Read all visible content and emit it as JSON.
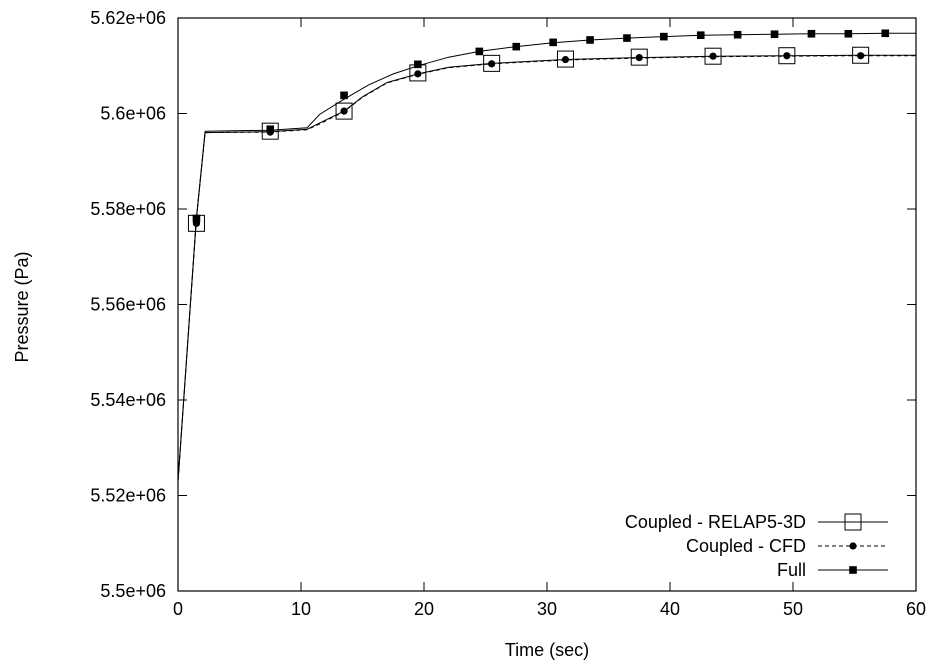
{
  "chart_data": {
    "type": "line",
    "title": "",
    "xlabel": "Time  (sec)",
    "ylabel": "Pressure (Pa)",
    "xlim": [
      0,
      60
    ],
    "ylim": [
      5500000,
      5620000
    ],
    "grid": false,
    "legend_position": "bottom-right",
    "x_ticks": [
      0,
      10,
      20,
      30,
      40,
      50,
      60
    ],
    "x_tick_labels": [
      "0",
      "10",
      "20",
      "30",
      "40",
      "50",
      "60"
    ],
    "y_ticks": [
      5500000,
      5520000,
      5540000,
      5560000,
      5580000,
      5600000,
      5620000
    ],
    "y_tick_labels": [
      "5.5e+06",
      "5.52e+06",
      "5.54e+06",
      "5.56e+06",
      "5.58e+06",
      "5.6e+06",
      "5.62e+06"
    ],
    "series": [
      {
        "name": "Coupled - RELAP5-3D",
        "marker": "open-square",
        "line": "solid",
        "line_x": [
          0,
          1.5,
          2.2,
          7.5,
          10.5,
          11.5,
          13.5,
          15,
          17,
          19.5,
          22,
          25.5,
          31.5,
          37.5,
          43.5,
          49.5,
          55.5,
          60
        ],
        "line_y": [
          5523000,
          5578000,
          5596000,
          5596200,
          5596700,
          5598000,
          5600500,
          5603500,
          5606500,
          5608300,
          5609700,
          5610500,
          5611300,
          5611700,
          5612000,
          5612100,
          5612200,
          5612200
        ],
        "marker_x": [
          1.5,
          7.5,
          13.5,
          19.5,
          25.5,
          31.5,
          37.5,
          43.5,
          49.5,
          55.5
        ],
        "marker_y": [
          5577000,
          5596300,
          5600500,
          5608500,
          5610500,
          5611400,
          5611800,
          5612000,
          5612100,
          5612200
        ]
      },
      {
        "name": "Coupled - CFD",
        "marker": "filled-circle",
        "line": "dashed",
        "line_x": [
          0,
          1.5,
          2.2,
          7.5,
          10.5,
          11.5,
          13.5,
          15,
          17,
          19.5,
          22,
          25.5,
          31.5,
          37.5,
          43.5,
          49.5,
          55.5,
          60
        ],
        "line_y": [
          5523000,
          5578000,
          5596000,
          5596100,
          5596600,
          5597800,
          5600400,
          5603400,
          5606400,
          5608200,
          5609600,
          5610400,
          5611200,
          5611600,
          5611900,
          5612000,
          5612100,
          5612100
        ],
        "marker_x": [
          1.5,
          7.5,
          13.5,
          19.5,
          25.5,
          31.5,
          37.5,
          43.5,
          49.5,
          55.5
        ],
        "marker_y": [
          5577000,
          5596100,
          5600500,
          5608300,
          5610400,
          5611300,
          5611700,
          5612000,
          5612100,
          5612100
        ]
      },
      {
        "name": "Full",
        "marker": "filled-square",
        "line": "solid",
        "line_x": [
          0,
          1.5,
          2.2,
          7.5,
          10.5,
          11.5,
          13.5,
          15.5,
          17.5,
          19.5,
          22,
          24.5,
          27.5,
          30.5,
          33.5,
          36.5,
          39.5,
          42.5,
          45.5,
          48.5,
          51.5,
          54.5,
          57.5,
          60
        ],
        "line_y": [
          5523000,
          5578000,
          5596300,
          5596500,
          5597000,
          5599800,
          5603000,
          5606000,
          5608300,
          5610000,
          5611800,
          5613000,
          5614000,
          5614800,
          5615400,
          5615800,
          5616100,
          5616400,
          5616500,
          5616600,
          5616700,
          5616700,
          5616800,
          5616800
        ],
        "marker_x": [
          1.5,
          7.5,
          13.5,
          19.5,
          24.5,
          27.5,
          30.5,
          33.5,
          36.5,
          39.5,
          42.5,
          45.5,
          48.5,
          51.5,
          54.5,
          57.5
        ],
        "marker_y": [
          5578000,
          5596700,
          5603800,
          5610300,
          5613000,
          5614000,
          5614900,
          5615400,
          5615800,
          5616100,
          5616400,
          5616500,
          5616600,
          5616700,
          5616700,
          5616800
        ]
      }
    ]
  }
}
